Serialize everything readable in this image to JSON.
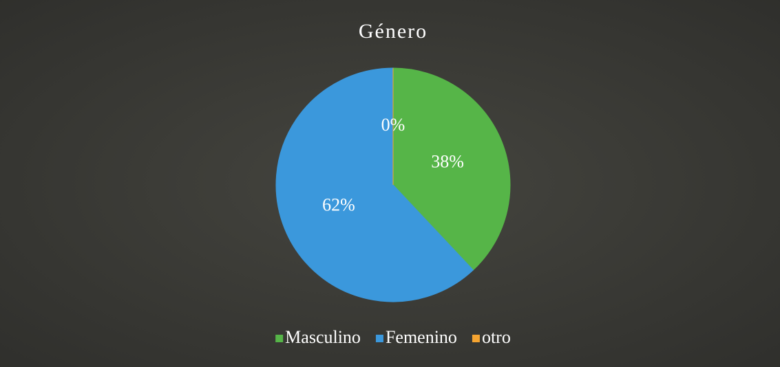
{
  "chart_data": {
    "type": "pie",
    "title": "Género",
    "categories": [
      "Masculino",
      "Femenino",
      "otro"
    ],
    "values": [
      38,
      62,
      0
    ],
    "value_labels": [
      "38%",
      "62%",
      "0%"
    ],
    "colors": [
      "#56b548",
      "#3b98dc",
      "#f5a431"
    ],
    "legend": "bottom"
  }
}
